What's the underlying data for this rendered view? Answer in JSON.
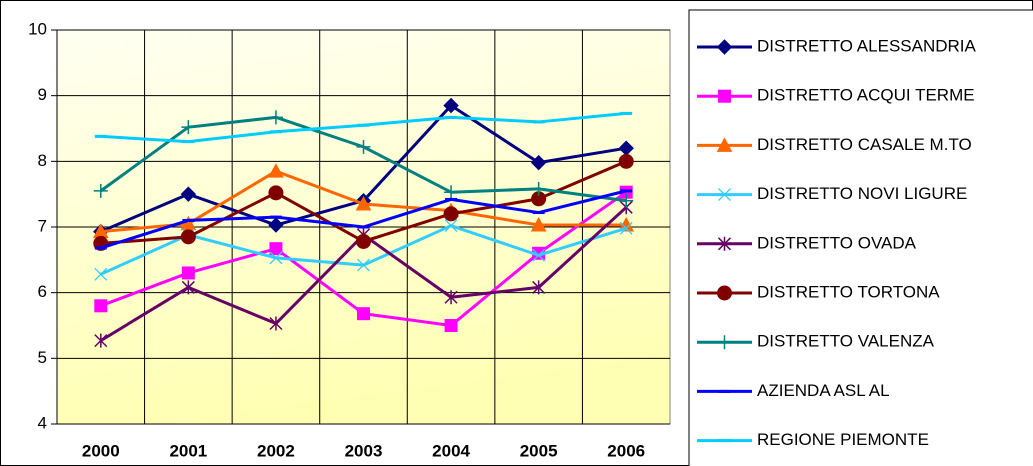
{
  "chart_data": {
    "type": "line",
    "categories": [
      "2000",
      "2001",
      "2002",
      "2003",
      "2004",
      "2005",
      "2006"
    ],
    "ylim": [
      4,
      10
    ],
    "yticks": [
      4,
      5,
      6,
      7,
      8,
      9,
      10
    ],
    "grid": true,
    "legend": "right",
    "series": [
      {
        "name": "DISTRETTO ALESSANDRIA",
        "color": "#000080",
        "marker": "diamond",
        "values": [
          6.93,
          7.5,
          7.03,
          7.4,
          8.85,
          7.98,
          8.2
        ]
      },
      {
        "name": "DISTRETTO ACQUI TERME",
        "color": "#ff00ff",
        "marker": "square",
        "values": [
          5.8,
          6.3,
          6.67,
          5.68,
          5.5,
          6.6,
          7.53
        ]
      },
      {
        "name": "DISTRETTO CASALE M.TO",
        "color": "#ff6600",
        "marker": "triangle",
        "values": [
          6.93,
          7.05,
          7.85,
          7.35,
          7.25,
          7.03,
          7.03
        ]
      },
      {
        "name": "DISTRETTO NOVI LIGURE",
        "color": "#33ccff",
        "marker": "x",
        "values": [
          6.28,
          6.88,
          6.53,
          6.42,
          7.02,
          6.57,
          6.98
        ]
      },
      {
        "name": "DISTRETTO OVADA",
        "color": "#660066",
        "marker": "star",
        "values": [
          5.27,
          6.08,
          5.53,
          6.88,
          5.93,
          6.08,
          7.3
        ]
      },
      {
        "name": "DISTRETTO TORTONA",
        "color": "#800000",
        "marker": "circle",
        "values": [
          6.75,
          6.85,
          7.52,
          6.78,
          7.2,
          7.43,
          8.0
        ]
      },
      {
        "name": "DISTRETTO VALENZA",
        "color": "#008080",
        "marker": "plus",
        "values": [
          7.55,
          8.52,
          8.67,
          8.22,
          7.53,
          7.58,
          7.4
        ]
      },
      {
        "name": "AZIENDA ASL AL",
        "color": "#0000ff",
        "marker": "dash",
        "values": [
          6.68,
          7.1,
          7.15,
          7.0,
          7.42,
          7.22,
          7.55
        ]
      },
      {
        "name": "REGIONE PIEMONTE",
        "color": "#00ccff",
        "marker": "dash",
        "values": [
          8.38,
          8.3,
          8.45,
          8.55,
          8.67,
          8.6,
          8.73
        ]
      }
    ]
  }
}
